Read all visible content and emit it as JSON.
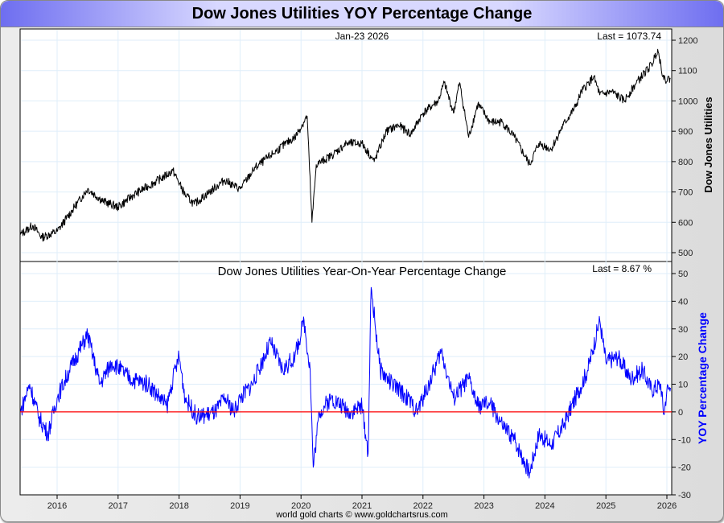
{
  "header": {
    "title": "Dow Jones Utilities YOY Percentage Change"
  },
  "footer": {
    "credit": "world gold charts © www.goldchartsrus.com"
  },
  "chart_data": [
    {
      "type": "line",
      "title": "",
      "date_label": "Jan-23  2026",
      "last_label": "Last = 1073.74",
      "ylabel": "Dow Jones Utilities",
      "ylim": [
        480,
        1240
      ],
      "yticks": [
        500,
        600,
        700,
        800,
        900,
        1000,
        1100,
        1200
      ],
      "line_color": "#000000",
      "x": [
        2015.4,
        2015.6,
        2015.75,
        2016.0,
        2016.25,
        2016.5,
        2016.75,
        2017.0,
        2017.25,
        2017.5,
        2017.75,
        2017.9,
        2018.1,
        2018.25,
        2018.5,
        2018.75,
        2018.9,
        2019.0,
        2019.25,
        2019.5,
        2019.75,
        2019.9,
        2020.1,
        2020.18,
        2020.25,
        2020.5,
        2020.75,
        2021.0,
        2021.2,
        2021.4,
        2021.6,
        2021.8,
        2022.0,
        2022.25,
        2022.35,
        2022.5,
        2022.6,
        2022.75,
        2022.9,
        2023.1,
        2023.3,
        2023.5,
        2023.75,
        2023.9,
        2024.1,
        2024.3,
        2024.5,
        2024.6,
        2024.8,
        2024.9,
        2025.1,
        2025.3,
        2025.5,
        2025.75,
        2025.85,
        2025.95,
        2026.06
      ],
      "values": [
        560,
        590,
        550,
        570,
        640,
        710,
        670,
        650,
        690,
        720,
        750,
        770,
        690,
        660,
        700,
        740,
        720,
        710,
        780,
        820,
        860,
        880,
        950,
        600,
        790,
        820,
        860,
        860,
        800,
        900,
        920,
        890,
        960,
        1000,
        1060,
        960,
        1060,
        880,
        990,
        930,
        930,
        880,
        790,
        860,
        840,
        920,
        980,
        1030,
        1080,
        1020,
        1030,
        1000,
        1060,
        1120,
        1170,
        1070,
        1073.74
      ]
    },
    {
      "type": "line",
      "title": "Dow Jones Utilities Year-On-Year Percentage Change",
      "last_label": "Last = 8.67 %",
      "ylabel": "YOY Percentage Change",
      "ylim": [
        -30,
        55
      ],
      "yticks": [
        -30,
        -20,
        -10,
        0,
        10,
        20,
        30,
        40,
        50
      ],
      "zero_line_color": "#ff0000",
      "line_color": "#0000ff",
      "xticks": [
        "2016",
        "2017",
        "2018",
        "2019",
        "2020",
        "2021",
        "2022",
        "2023",
        "2024",
        "2025",
        "2026"
      ],
      "x": [
        2015.4,
        2015.55,
        2015.7,
        2015.85,
        2016.0,
        2016.2,
        2016.5,
        2016.7,
        2016.9,
        2017.2,
        2017.5,
        2017.8,
        2017.9,
        2018.0,
        2018.1,
        2018.3,
        2018.6,
        2018.75,
        2018.9,
        2019.0,
        2019.2,
        2019.5,
        2019.7,
        2019.9,
        2020.05,
        2020.15,
        2020.2,
        2020.3,
        2020.5,
        2020.8,
        2021.0,
        2021.1,
        2021.15,
        2021.3,
        2021.5,
        2021.75,
        2021.9,
        2022.1,
        2022.3,
        2022.5,
        2022.75,
        2022.9,
        2023.1,
        2023.3,
        2023.5,
        2023.75,
        2023.9,
        2024.1,
        2024.3,
        2024.5,
        2024.7,
        2024.9,
        2025.0,
        2025.2,
        2025.4,
        2025.6,
        2025.75,
        2025.9,
        2025.95,
        2026.0,
        2026.06
      ],
      "values": [
        0,
        10,
        -2,
        -8,
        5,
        15,
        28,
        10,
        18,
        12,
        10,
        2,
        12,
        20,
        5,
        -2,
        0,
        5,
        0,
        5,
        10,
        25,
        15,
        20,
        33,
        15,
        -20,
        0,
        5,
        0,
        2,
        -15,
        45,
        15,
        10,
        5,
        0,
        10,
        22,
        5,
        12,
        2,
        3,
        -5,
        -10,
        -22,
        -8,
        -12,
        -5,
        5,
        15,
        33,
        18,
        20,
        12,
        15,
        8,
        10,
        -1,
        8,
        8.67
      ]
    }
  ]
}
